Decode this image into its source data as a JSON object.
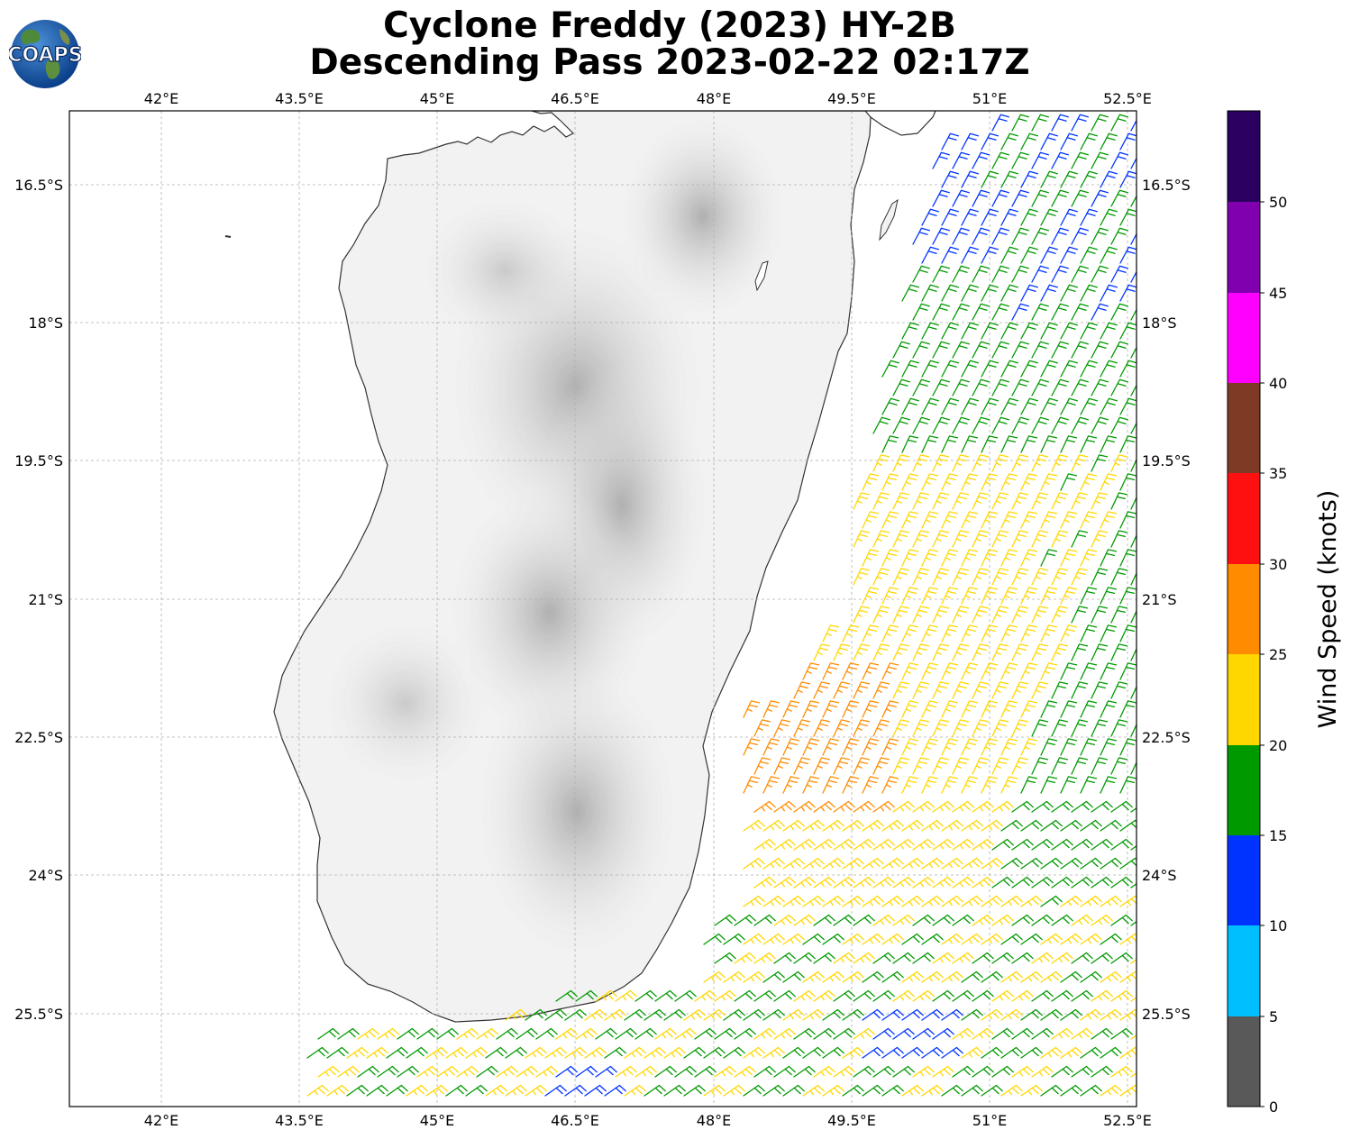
{
  "header": {
    "title_line1": "Cyclone Freddy (2023) HY-2B",
    "title_line2": "Descending Pass 2023-02-22 02:17Z",
    "logo_text": "COAPS"
  },
  "map": {
    "lon_labels": [
      "42°E",
      "43.5°E",
      "45°E",
      "46.5°E",
      "48°E",
      "49.5°E",
      "51°E",
      "52.5°E"
    ],
    "lat_labels": [
      "16.5°S",
      "18°S",
      "19.5°S",
      "21°S",
      "22.5°S",
      "24°S",
      "25.5°S"
    ],
    "landmass": "Madagascar",
    "wind_barb_colors": {
      "5-10": "#00bfff",
      "10-15": "#0033ff",
      "15-20": "#009900",
      "20-25": "#ffd700",
      "25-30": "#ff8c00"
    }
  },
  "colorbar": {
    "label": "Wind Speed (knots)",
    "ticks": [
      "0",
      "5",
      "10",
      "15",
      "20",
      "25",
      "30",
      "35",
      "40",
      "45",
      "50"
    ],
    "colors": [
      "#595959",
      "#00bfff",
      "#0033ff",
      "#009900",
      "#ffd700",
      "#ff8c00",
      "#ff1010",
      "#7f3a26",
      "#ff00ff",
      "#8000b0",
      "#2a0060"
    ]
  }
}
